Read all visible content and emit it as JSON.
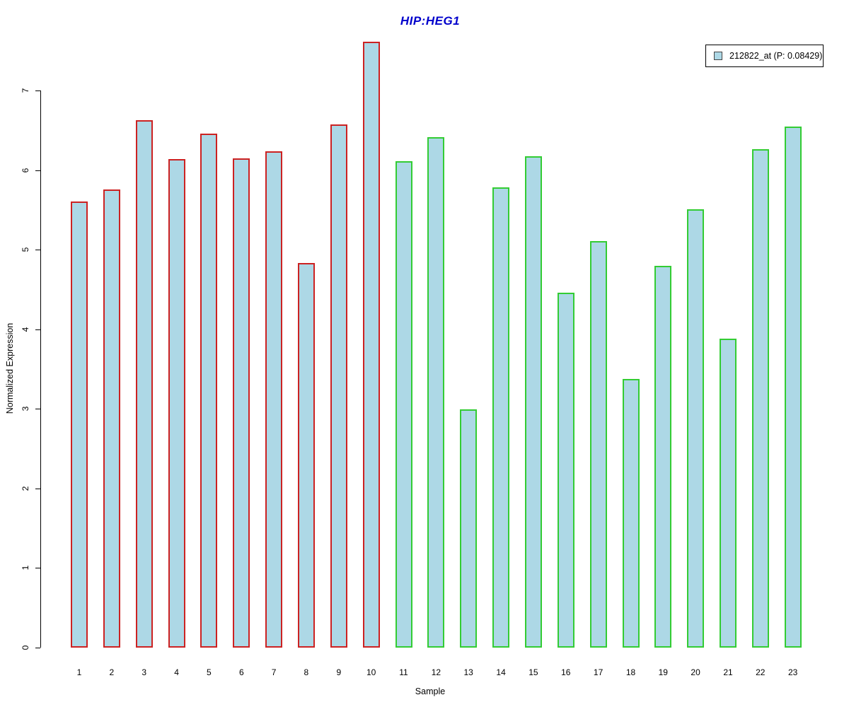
{
  "title": {
    "text": "HIP:HEG1",
    "color": "#0000cc"
  },
  "legend": {
    "label": "212822_at (P: 0.08429)",
    "position": "top-right",
    "swatch_fill": "#add8e6",
    "swatch_border": "#444444"
  },
  "chart_data": {
    "type": "bar",
    "title": "HIP:HEG1",
    "xlabel": "Sample",
    "ylabel": "Normalized Expression",
    "ylim": [
      0,
      7.61
    ],
    "y_ticks": [
      0,
      1,
      2,
      3,
      4,
      5,
      6,
      7
    ],
    "grid": false,
    "legend_entries": [
      "212822_at (P: 0.08429)"
    ],
    "categories": [
      "1",
      "2",
      "3",
      "4",
      "5",
      "6",
      "7",
      "8",
      "9",
      "10",
      "11",
      "12",
      "13",
      "14",
      "15",
      "16",
      "17",
      "18",
      "19",
      "20",
      "21",
      "22",
      "23"
    ],
    "values": [
      5.61,
      5.76,
      6.63,
      6.14,
      6.46,
      6.15,
      6.24,
      4.83,
      6.57,
      7.61,
      6.11,
      6.41,
      2.99,
      5.78,
      6.17,
      4.46,
      5.11,
      3.38,
      4.8,
      5.51,
      3.88,
      6.26,
      6.55
    ],
    "bar_fill": "#add8e6",
    "groups": [
      {
        "samples": "1-10",
        "border_color": "#cc2222",
        "count": 10
      },
      {
        "samples": "11-23",
        "border_color": "#33cc33",
        "count": 13
      }
    ]
  }
}
